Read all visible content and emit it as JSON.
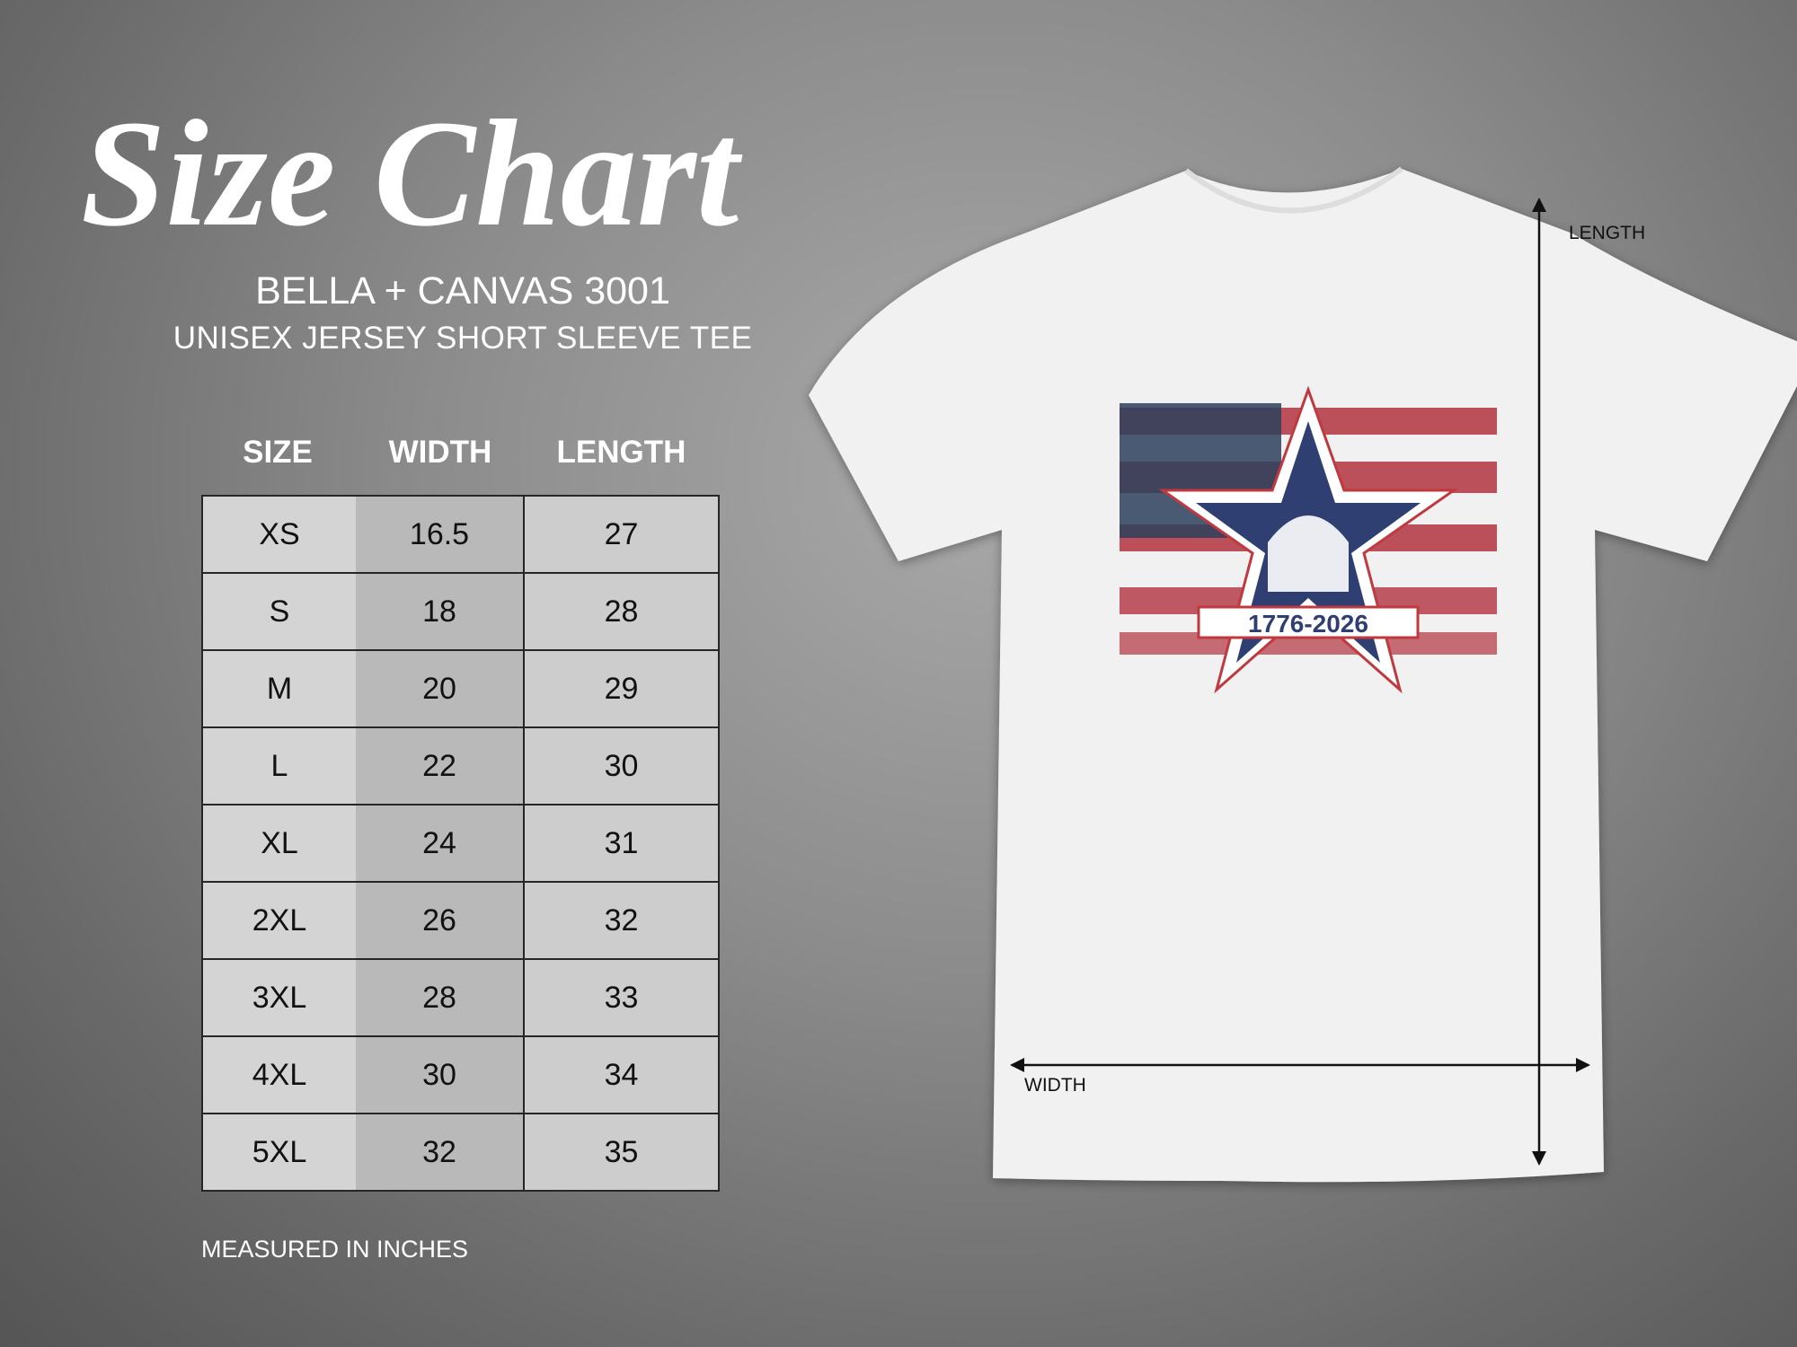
{
  "title": "Size Chart",
  "brand": "BELLA + CANVAS 3001",
  "product": "UNISEX JERSEY SHORT SLEEVE TEE",
  "table": {
    "headers": [
      "SIZE",
      "WIDTH",
      "LENGTH"
    ],
    "rows": [
      [
        "XS",
        "16.5",
        "27"
      ],
      [
        "S",
        "18",
        "28"
      ],
      [
        "M",
        "20",
        "29"
      ],
      [
        "L",
        "22",
        "30"
      ],
      [
        "XL",
        "24",
        "31"
      ],
      [
        "2XL",
        "26",
        "32"
      ],
      [
        "3XL",
        "28",
        "33"
      ],
      [
        "4XL",
        "30",
        "34"
      ],
      [
        "5XL",
        "32",
        "35"
      ]
    ]
  },
  "note": "MEASURED IN INCHES",
  "shirt": {
    "length_label": "LENGTH",
    "width_label": "WIDTH",
    "graphic_text": "1776-2026",
    "colors": {
      "navy": "#2f3f72",
      "red": "#b2323f",
      "shirt": "#f1f1f1"
    }
  }
}
